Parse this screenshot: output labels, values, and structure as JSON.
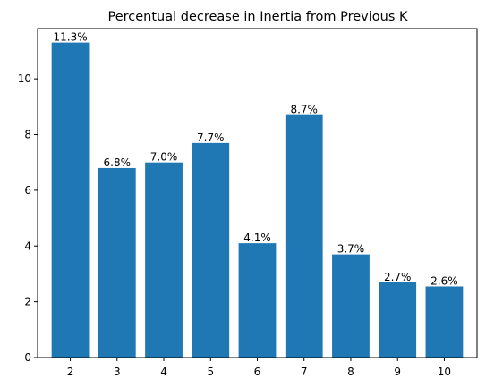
{
  "chart_data": {
    "type": "bar",
    "title": "Percentual decrease in Inertia from Previous K",
    "xlabel": "",
    "ylabel": "",
    "categories": [
      "2",
      "3",
      "4",
      "5",
      "6",
      "7",
      "8",
      "9",
      "10"
    ],
    "values": [
      11.3,
      6.8,
      7.0,
      7.7,
      4.1,
      8.7,
      3.7,
      2.7,
      2.55
    ],
    "data_labels": [
      "11.3%",
      "6.8%",
      "7.0%",
      "7.7%",
      "4.1%",
      "8.7%",
      "3.7%",
      "2.7%",
      "2.6%"
    ],
    "ylim": [
      0,
      11.8
    ],
    "yticks": [
      0,
      2,
      4,
      6,
      8,
      10
    ],
    "bar_color": "#1f77b4",
    "grid": false,
    "legend": "none"
  }
}
